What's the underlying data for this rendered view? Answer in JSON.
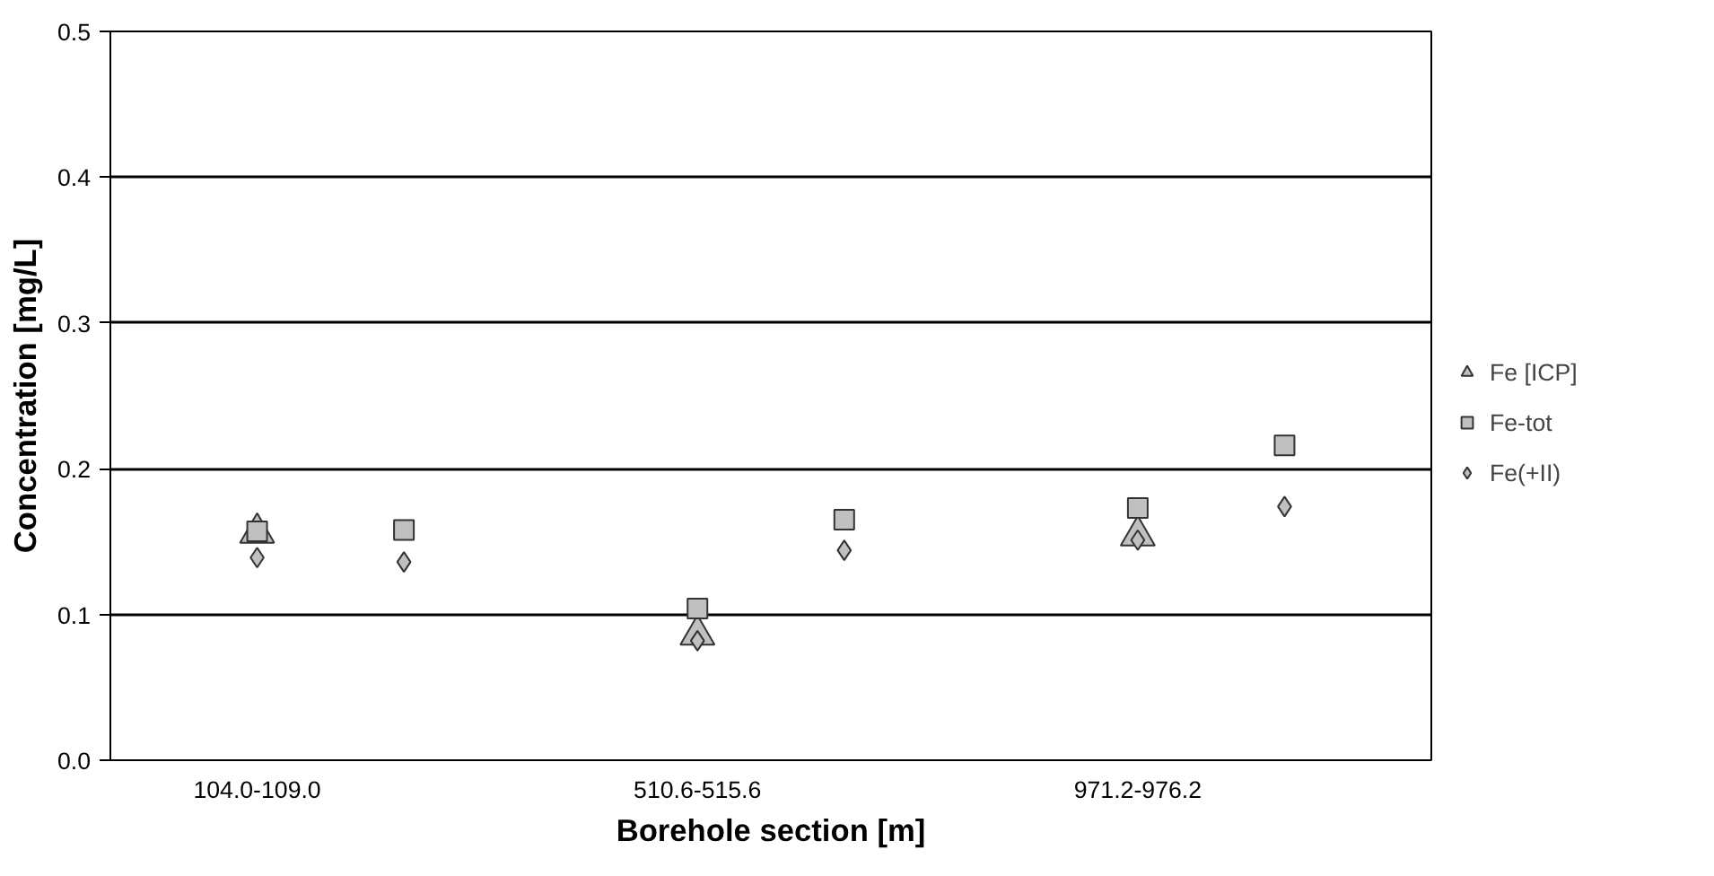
{
  "chart_data": {
    "type": "scatter",
    "xlabel": "Borehole section [m]",
    "ylabel": "Concentration [mg/L]",
    "categories": [
      "104.0-109.0",
      null,
      "510.6-515.6",
      null,
      "971.2-976.2",
      null
    ],
    "ylim": [
      0,
      0.5
    ],
    "yticks": [
      {
        "value": 0,
        "label": "0.0"
      },
      0.1,
      0.2,
      0.3,
      0.4,
      0.5
    ],
    "grid": "y",
    "legend": "right",
    "series": [
      {
        "name": "Fe [ICP]",
        "color": "#c0c0c0",
        "marker": "triangle",
        "values": [
          0.156,
          null,
          0.086,
          null,
          0.154,
          null
        ]
      },
      {
        "name": "Fe-tot",
        "color": "#c0c0c0",
        "marker": "square",
        "values": [
          0.157,
          0.158,
          0.104,
          0.165,
          0.173,
          0.216
        ]
      },
      {
        "name": "Fe(+II)",
        "color": "#c0c0c0",
        "marker": "diamond",
        "values": [
          0.139,
          0.136,
          0.082,
          0.144,
          0.151,
          0.174
        ]
      }
    ]
  }
}
